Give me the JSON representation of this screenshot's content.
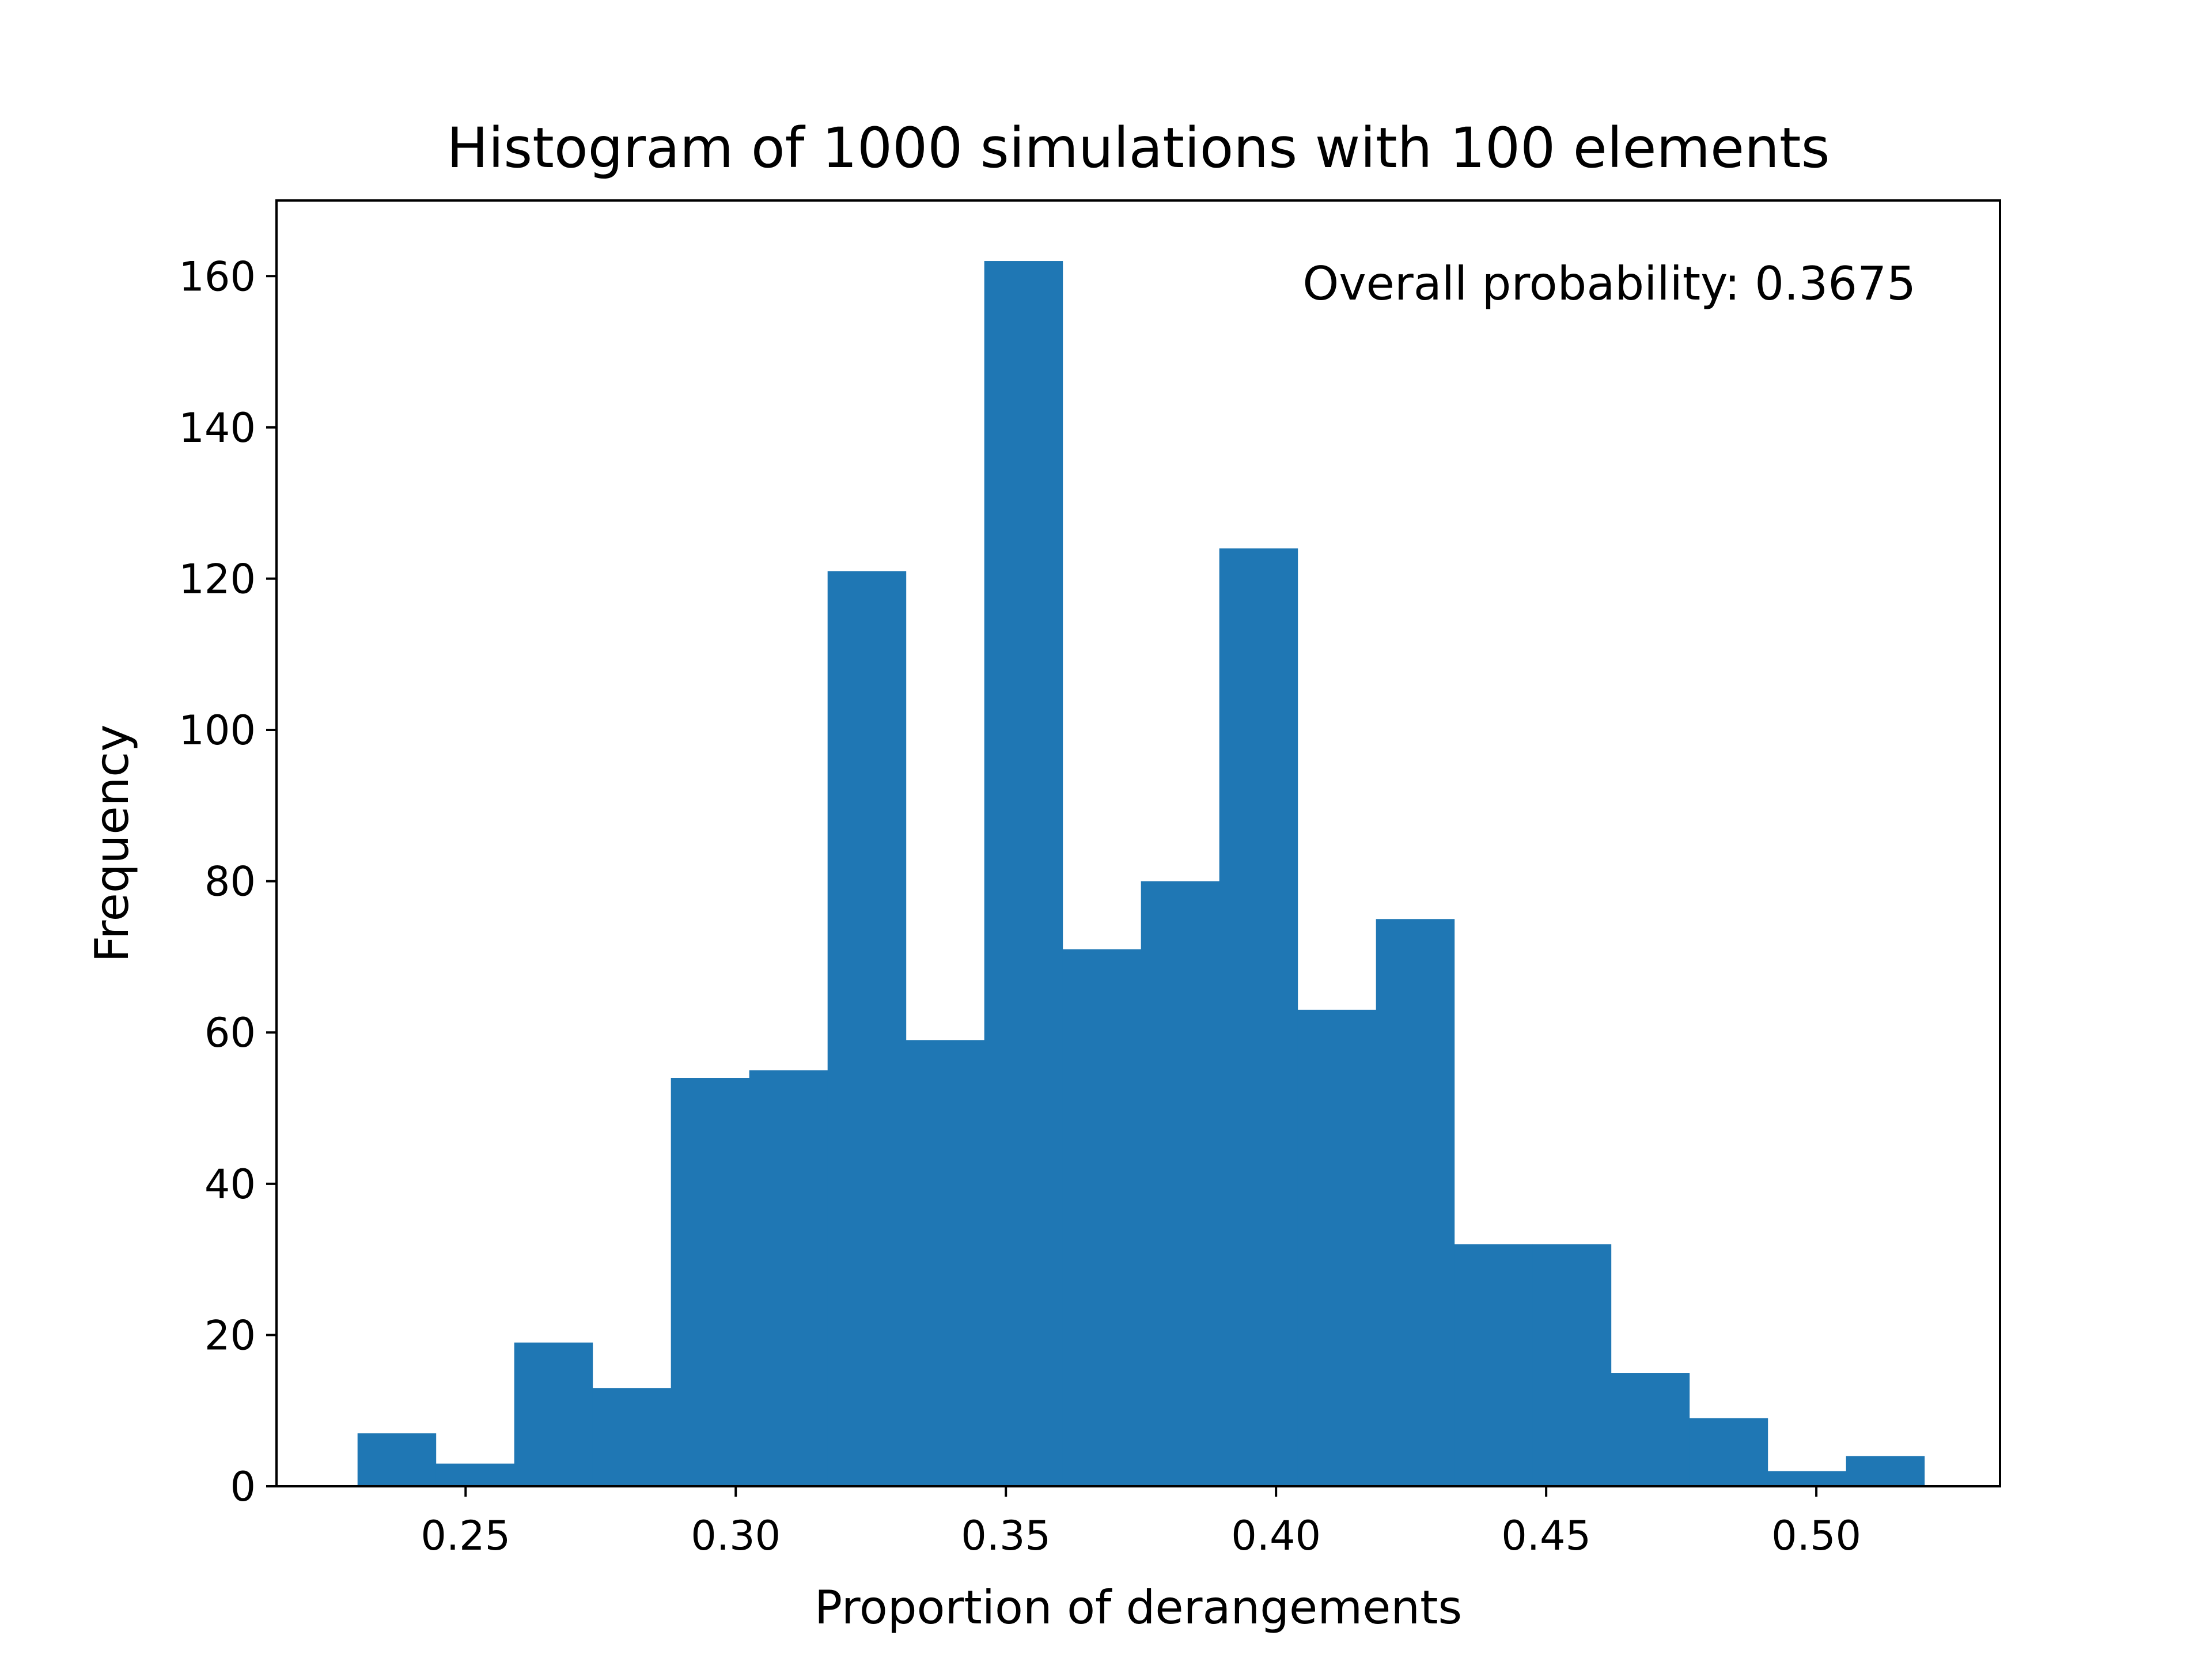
{
  "chart_data": {
    "type": "bar",
    "title": "Histogram of 1000 simulations with 100 elements",
    "xlabel": "Proportion of derangements",
    "ylabel": "Frequency",
    "annotation": "Overall probability: 0.3675",
    "bar_color": "#1f77b4",
    "grid": false,
    "legend": "none",
    "xlim": [
      0.215,
      0.534
    ],
    "ylim": [
      0,
      170
    ],
    "xticks": [
      {
        "value": 0.25,
        "label": "0.25"
      },
      {
        "value": 0.3,
        "label": "0.30"
      },
      {
        "value": 0.35,
        "label": "0.35"
      },
      {
        "value": 0.4,
        "label": "0.40"
      },
      {
        "value": 0.45,
        "label": "0.45"
      },
      {
        "value": 0.5,
        "label": "0.50"
      }
    ],
    "yticks": [
      {
        "value": 0,
        "label": "0"
      },
      {
        "value": 20,
        "label": "20"
      },
      {
        "value": 40,
        "label": "40"
      },
      {
        "value": 60,
        "label": "60"
      },
      {
        "value": 80,
        "label": "80"
      },
      {
        "value": 100,
        "label": "100"
      },
      {
        "value": 120,
        "label": "120"
      },
      {
        "value": 140,
        "label": "140"
      },
      {
        "value": 160,
        "label": "160"
      }
    ],
    "bin_edges": [
      0.23,
      0.2445,
      0.259,
      0.2735,
      0.288,
      0.3025,
      0.317,
      0.3315,
      0.346,
      0.3605,
      0.375,
      0.3895,
      0.404,
      0.4185,
      0.433,
      0.4475,
      0.462,
      0.4765,
      0.491,
      0.5055,
      0.52
    ],
    "values": [
      7,
      3,
      19,
      13,
      54,
      55,
      121,
      59,
      162,
      71,
      80,
      124,
      63,
      75,
      32,
      32,
      15,
      9,
      2,
      4
    ]
  }
}
